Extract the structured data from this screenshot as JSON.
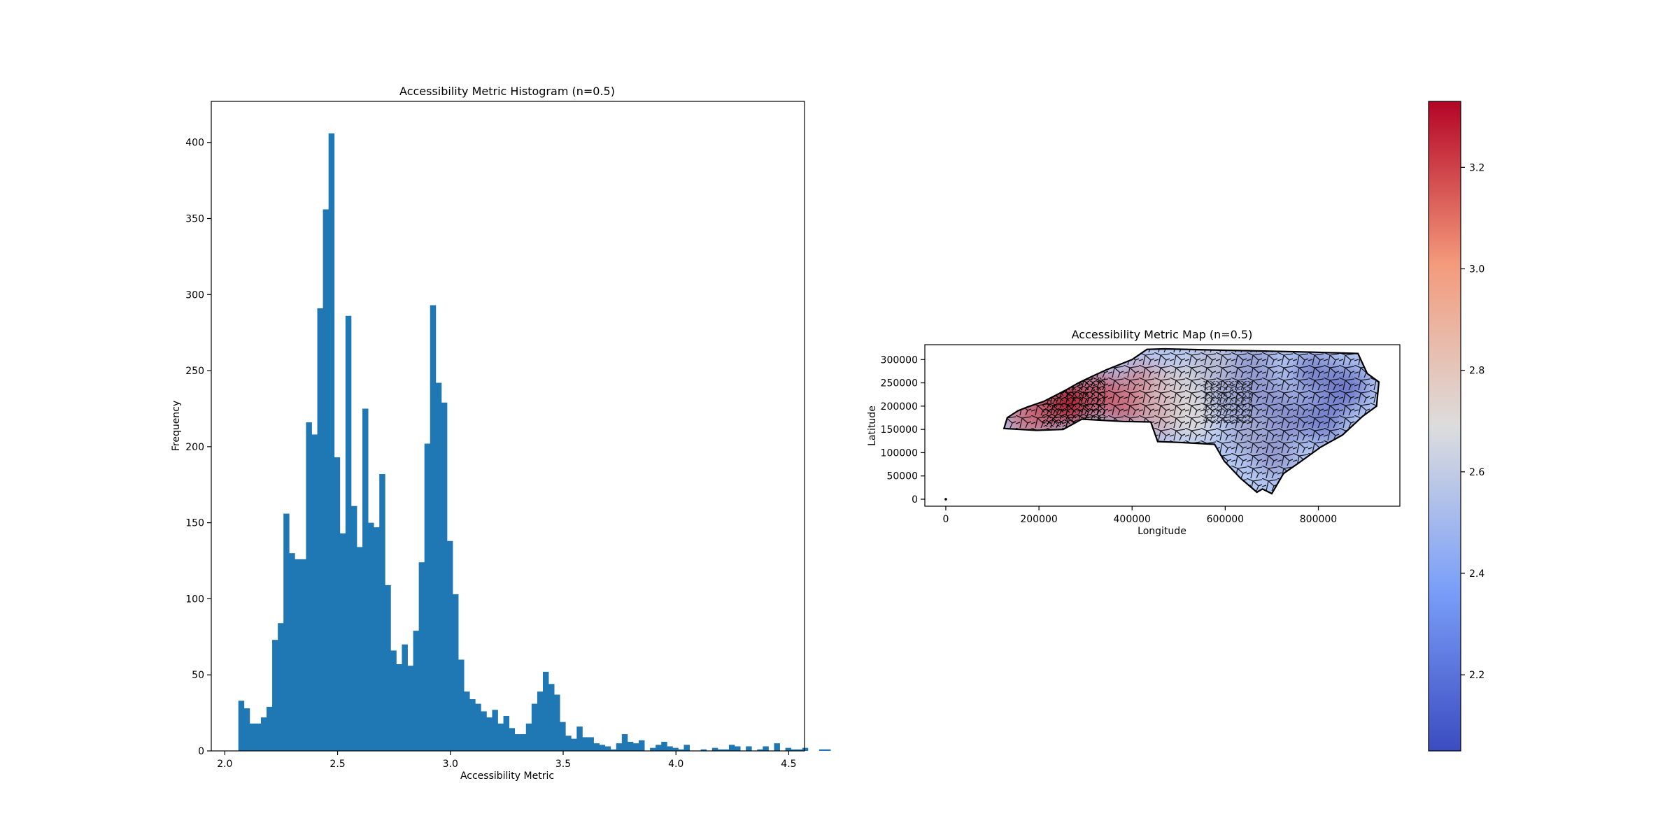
{
  "chart_data": [
    {
      "type": "bar",
      "title": "Accessibility Metric Histogram (n=0.5)",
      "xlabel": "Accessibility Metric",
      "ylabel": "Frequency",
      "xlim": [
        1.94,
        4.57
      ],
      "ylim": [
        0,
        427
      ],
      "xticks": [
        2.0,
        2.5,
        3.0,
        3.5,
        4.0,
        4.5
      ],
      "xtick_labels": [
        "2.0",
        "2.5",
        "3.0",
        "3.5",
        "4.0",
        "4.5"
      ],
      "yticks": [
        0,
        50,
        100,
        150,
        200,
        250,
        300,
        350,
        400
      ],
      "ytick_labels": [
        "0",
        "50",
        "100",
        "150",
        "200",
        "250",
        "300",
        "350",
        "400"
      ],
      "grid": false,
      "color": "#1f77b4",
      "bin_start": 2.06,
      "bin_width": 0.025,
      "values": [
        33,
        28,
        18,
        18,
        22,
        29,
        73,
        84,
        156,
        130,
        126,
        126,
        216,
        208,
        291,
        356,
        406,
        193,
        143,
        286,
        161,
        134,
        225,
        150,
        147,
        182,
        109,
        66,
        57,
        70,
        56,
        79,
        124,
        202,
        293,
        242,
        229,
        138,
        103,
        60,
        39,
        34,
        31,
        26,
        22,
        27,
        18,
        23,
        15,
        11,
        11,
        18,
        31,
        39,
        52,
        44,
        37,
        19,
        10,
        8,
        16,
        9,
        9,
        5,
        4,
        3,
        1,
        5,
        11,
        6,
        5,
        7,
        0,
        2,
        4,
        6,
        3,
        2,
        1,
        4,
        0,
        0,
        1,
        0,
        2,
        1,
        1,
        4,
        3,
        0,
        3,
        0,
        1,
        3,
        0,
        5,
        0,
        2,
        1,
        1,
        2,
        0,
        0,
        1,
        1
      ]
    },
    {
      "type": "heatmap",
      "title": "Accessibility Metric Map (n=0.5)",
      "xlabel": "Longitude",
      "ylabel": "Latitude",
      "xlim": [
        -45000,
        975000
      ],
      "ylim": [
        -15000,
        332000
      ],
      "xticks": [
        0,
        200000,
        400000,
        600000,
        800000
      ],
      "xtick_labels": [
        "0",
        "200000",
        "400000",
        "600000",
        "800000"
      ],
      "yticks": [
        0,
        50000,
        100000,
        150000,
        200000,
        250000,
        300000
      ],
      "ytick_labels": [
        "0",
        "50000",
        "100000",
        "150000",
        "200000",
        "250000",
        "300000"
      ],
      "colormap": "coolwarm",
      "colorbar": {
        "range": [
          2.05,
          3.33
        ],
        "ticks": [
          2.2,
          2.4,
          2.6,
          2.8,
          3.0,
          3.2
        ],
        "tick_labels": [
          "2.2",
          "2.4",
          "2.6",
          "2.8",
          "3.0",
          "3.2"
        ],
        "low_color": "#3b4cc0",
        "mid_color": "#dddddd",
        "high_color": "#b40426"
      },
      "state_outline_xy": [
        [
          125000,
          152000
        ],
        [
          132000,
          175000
        ],
        [
          155000,
          190000
        ],
        [
          175000,
          198000
        ],
        [
          210000,
          210000
        ],
        [
          255000,
          233000
        ],
        [
          285000,
          250000
        ],
        [
          310000,
          262000
        ],
        [
          345000,
          278000
        ],
        [
          400000,
          300000
        ],
        [
          432000,
          322000
        ],
        [
          470000,
          323000
        ],
        [
          600000,
          320000
        ],
        [
          700000,
          318000
        ],
        [
          790000,
          316000
        ],
        [
          885000,
          313000
        ],
        [
          905000,
          270000
        ],
        [
          930000,
          252000
        ],
        [
          925000,
          200000
        ],
        [
          895000,
          178000
        ],
        [
          852000,
          138000
        ],
        [
          805000,
          112000
        ],
        [
          758000,
          78000
        ],
        [
          725000,
          55000
        ],
        [
          700000,
          12000
        ],
        [
          680000,
          22000
        ],
        [
          668000,
          15000
        ],
        [
          633000,
          45000
        ],
        [
          598000,
          82000
        ],
        [
          577000,
          118000
        ],
        [
          502000,
          122000
        ],
        [
          455000,
          124000
        ],
        [
          440000,
          166000
        ],
        [
          380000,
          167000
        ],
        [
          292000,
          172000
        ],
        [
          252000,
          150000
        ],
        [
          195000,
          148000
        ]
      ],
      "regions": [
        {
          "center": [
            175000,
            178000
          ],
          "value": 3.0
        },
        {
          "center": [
            225000,
            195000
          ],
          "value": 3.1
        },
        {
          "center": [
            275000,
            210000
          ],
          "value": 3.33
        },
        {
          "center": [
            330000,
            225000
          ],
          "value": 3.1
        },
        {
          "center": [
            385000,
            205000
          ],
          "value": 3.05
        },
        {
          "center": [
            420000,
            245000
          ],
          "value": 2.95
        },
        {
          "center": [
            460000,
            185000
          ],
          "value": 2.85
        },
        {
          "center": [
            480000,
            240000
          ],
          "value": 2.78
        },
        {
          "center": [
            535000,
            255000
          ],
          "value": 2.65
        },
        {
          "center": [
            530000,
            175000
          ],
          "value": 2.7
        },
        {
          "center": [
            570000,
            290000
          ],
          "value": 2.55
        },
        {
          "center": [
            610000,
            225000
          ],
          "value": 2.45
        },
        {
          "center": [
            660000,
            285000
          ],
          "value": 2.4
        },
        {
          "center": [
            690000,
            215000
          ],
          "value": 2.38
        },
        {
          "center": [
            650000,
            140000
          ],
          "value": 2.45
        },
        {
          "center": [
            705000,
            95000
          ],
          "value": 2.4
        },
        {
          "center": [
            740000,
            175000
          ],
          "value": 2.35
        },
        {
          "center": [
            790000,
            270000
          ],
          "value": 2.3
        },
        {
          "center": [
            810000,
            170000
          ],
          "value": 2.28
        },
        {
          "center": [
            860000,
            240000
          ],
          "value": 2.25
        }
      ],
      "outlier_point": [
        0,
        0
      ]
    }
  ]
}
